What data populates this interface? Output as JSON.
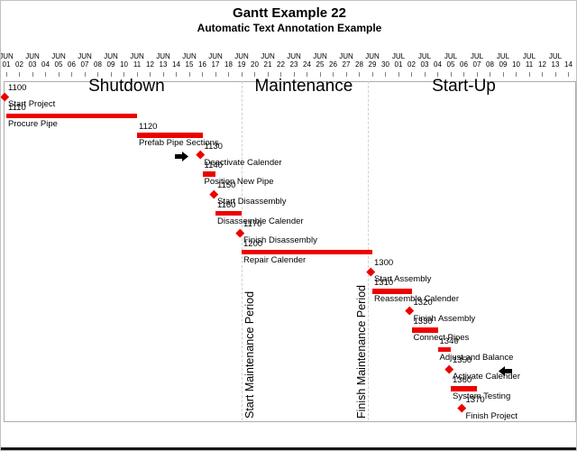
{
  "chart_data": {
    "type": "gantt",
    "title": "Gantt Example 22",
    "subtitle": "Automatic Text Annotation Example",
    "axis": {
      "unit": "day",
      "start": "JUN 01",
      "end": "JUL 14",
      "ticks": [
        [
          "JUN",
          "01"
        ],
        [
          "",
          "02"
        ],
        [
          "JUN",
          "03"
        ],
        [
          "",
          "04"
        ],
        [
          "JUN",
          "05"
        ],
        [
          "",
          "06"
        ],
        [
          "JUN",
          "07"
        ],
        [
          "",
          "08"
        ],
        [
          "JUN",
          "09"
        ],
        [
          "",
          "10"
        ],
        [
          "JUN",
          "11"
        ],
        [
          "",
          "12"
        ],
        [
          "JUN",
          "13"
        ],
        [
          "",
          "14"
        ],
        [
          "JUN",
          "15"
        ],
        [
          "",
          "16"
        ],
        [
          "JUN",
          "17"
        ],
        [
          "",
          "18"
        ],
        [
          "JUN",
          "19"
        ],
        [
          "",
          "20"
        ],
        [
          "JUN",
          "21"
        ],
        [
          "",
          "22"
        ],
        [
          "JUN",
          "23"
        ],
        [
          "",
          "24"
        ],
        [
          "JUN",
          "25"
        ],
        [
          "",
          "26"
        ],
        [
          "JUN",
          "27"
        ],
        [
          "",
          "28"
        ],
        [
          "JUN",
          "29"
        ],
        [
          "",
          "30"
        ],
        [
          "JUL",
          "01"
        ],
        [
          "",
          "02"
        ],
        [
          "JUL",
          "03"
        ],
        [
          "",
          "04"
        ],
        [
          "JUL",
          "05"
        ],
        [
          "",
          "06"
        ],
        [
          "JUL",
          "07"
        ],
        [
          "",
          "08"
        ],
        [
          "JUL",
          "09"
        ],
        [
          "",
          "10"
        ],
        [
          "JUL",
          "11"
        ],
        [
          "",
          "12"
        ],
        [
          "JUL",
          "13"
        ],
        [
          "",
          "14"
        ]
      ]
    },
    "phases": [
      {
        "label": "Shutdown",
        "center_day": 9.2
      },
      {
        "label": "Maintenance",
        "center_day": 22.75
      },
      {
        "label": "Start-Up",
        "center_day": 35.0
      }
    ],
    "tasks": [
      {
        "id": "1100",
        "name": "Start Project",
        "type": "milestone",
        "day": 0,
        "date": "JUN 01"
      },
      {
        "id": "1110",
        "name": "Procure Pipe",
        "type": "bar",
        "start": 0,
        "end": 10,
        "start_date": "JUN 01",
        "end_date": "JUN 10"
      },
      {
        "id": "1120",
        "name": "Prefab Pipe Sections",
        "type": "bar",
        "start": 10,
        "end": 15,
        "start_date": "JUN 11",
        "end_date": "JUN 15"
      },
      {
        "id": "1130",
        "name": "Deactivate Calender",
        "type": "milestone",
        "day": 15,
        "date": "JUN 16"
      },
      {
        "id": "1140",
        "name": "Position New Pipe",
        "type": "bar",
        "start": 15,
        "end": 16,
        "start_date": "JUN 16",
        "end_date": "JUN 16"
      },
      {
        "id": "1150",
        "name": "Start Disassembly",
        "type": "milestone",
        "day": 16,
        "date": "JUN 17"
      },
      {
        "id": "1160",
        "name": "Disassemble Calender",
        "type": "bar",
        "start": 16,
        "end": 18,
        "start_date": "JUN 17",
        "end_date": "JUN 18"
      },
      {
        "id": "1170",
        "name": "Finish Disassembly",
        "type": "milestone",
        "day": 18,
        "date": "JUN 19"
      },
      {
        "id": "1200",
        "name": "Repair Calender",
        "type": "bar",
        "start": 18,
        "end": 28,
        "start_date": "JUN 19",
        "end_date": "JUN 28"
      },
      {
        "id": "1300",
        "name": "Start Assembly",
        "type": "milestone",
        "day": 28,
        "date": "JUN 29"
      },
      {
        "id": "1310",
        "name": "Reassemble Calender",
        "type": "bar",
        "start": 28,
        "end": 31,
        "start_date": "JUN 29",
        "end_date": "JUL 01"
      },
      {
        "id": "1320",
        "name": "Finish Assembly",
        "type": "milestone",
        "day": 31,
        "date": "JUL 02"
      },
      {
        "id": "1330",
        "name": "Connect Pipes",
        "type": "bar",
        "start": 31,
        "end": 33,
        "start_date": "JUL 02",
        "end_date": "JUL 03"
      },
      {
        "id": "1340",
        "name": "Adjust and Balance",
        "type": "bar",
        "start": 33,
        "end": 34,
        "start_date": "JUL 04",
        "end_date": "JUL 04"
      },
      {
        "id": "1350",
        "name": "Activate Calender",
        "type": "milestone",
        "day": 34,
        "date": "JUL 05"
      },
      {
        "id": "1360",
        "name": "System Testing",
        "type": "bar",
        "start": 34,
        "end": 36,
        "start_date": "JUL 05",
        "end_date": "JUL 06"
      },
      {
        "id": "1370",
        "name": "Finish Project",
        "type": "milestone",
        "day": 35,
        "date": "JUL 06"
      }
    ],
    "reference_lines": [
      {
        "label": "Start Maintenance Period",
        "day": 18,
        "label_side": "right"
      },
      {
        "label": "Finish Maintenance Period",
        "day": 27.7,
        "label_side": "left"
      }
    ],
    "arrows": [
      {
        "direction": "right",
        "tip_day": 13.9,
        "row": 3
      },
      {
        "direction": "left",
        "tip_day": 37.65,
        "row": 14
      }
    ],
    "colors": {
      "bar": "#ee0000",
      "milestone": "#ee0000",
      "arrow": "#000000",
      "reference_line": "#d0d0d0",
      "plot_border": "#ababab",
      "axis_tick": "#808080",
      "text": "#000000"
    },
    "legend": "none",
    "grid": "off"
  }
}
